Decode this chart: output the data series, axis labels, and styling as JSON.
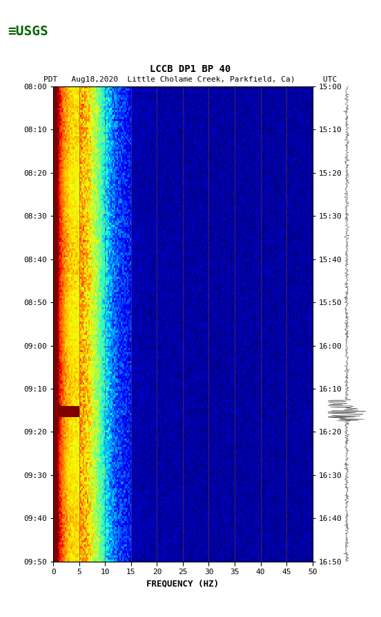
{
  "title_line1": "LCCB DP1 BP 40",
  "title_line2": "PDT   Aug18,2020  Little Cholame Creek, Parkfield, Ca)      UTC",
  "xlabel": "FREQUENCY (HZ)",
  "freq_min": 0,
  "freq_max": 50,
  "time_start_pdt": "08:00",
  "time_end_pdt": "09:50",
  "time_start_utc": "15:00",
  "time_end_utc": "16:50",
  "ytick_pdt": [
    "08:00",
    "08:10",
    "08:20",
    "08:30",
    "08:40",
    "08:50",
    "09:00",
    "09:10",
    "09:20",
    "09:30",
    "09:40",
    "09:50"
  ],
  "ytick_utc": [
    "15:00",
    "15:10",
    "15:20",
    "15:30",
    "15:40",
    "15:50",
    "16:00",
    "16:10",
    "16:20",
    "16:30",
    "16:40",
    "16:50"
  ],
  "xticks": [
    0,
    5,
    10,
    15,
    20,
    25,
    30,
    35,
    40,
    45,
    50
  ],
  "vgrid_freqs": [
    5,
    10,
    15,
    20,
    25,
    30,
    35,
    40,
    45
  ],
  "background_color": "#ffffff",
  "spectrogram_bg": "#00008B",
  "colormap": "jet",
  "fig_width": 5.52,
  "fig_height": 8.92
}
